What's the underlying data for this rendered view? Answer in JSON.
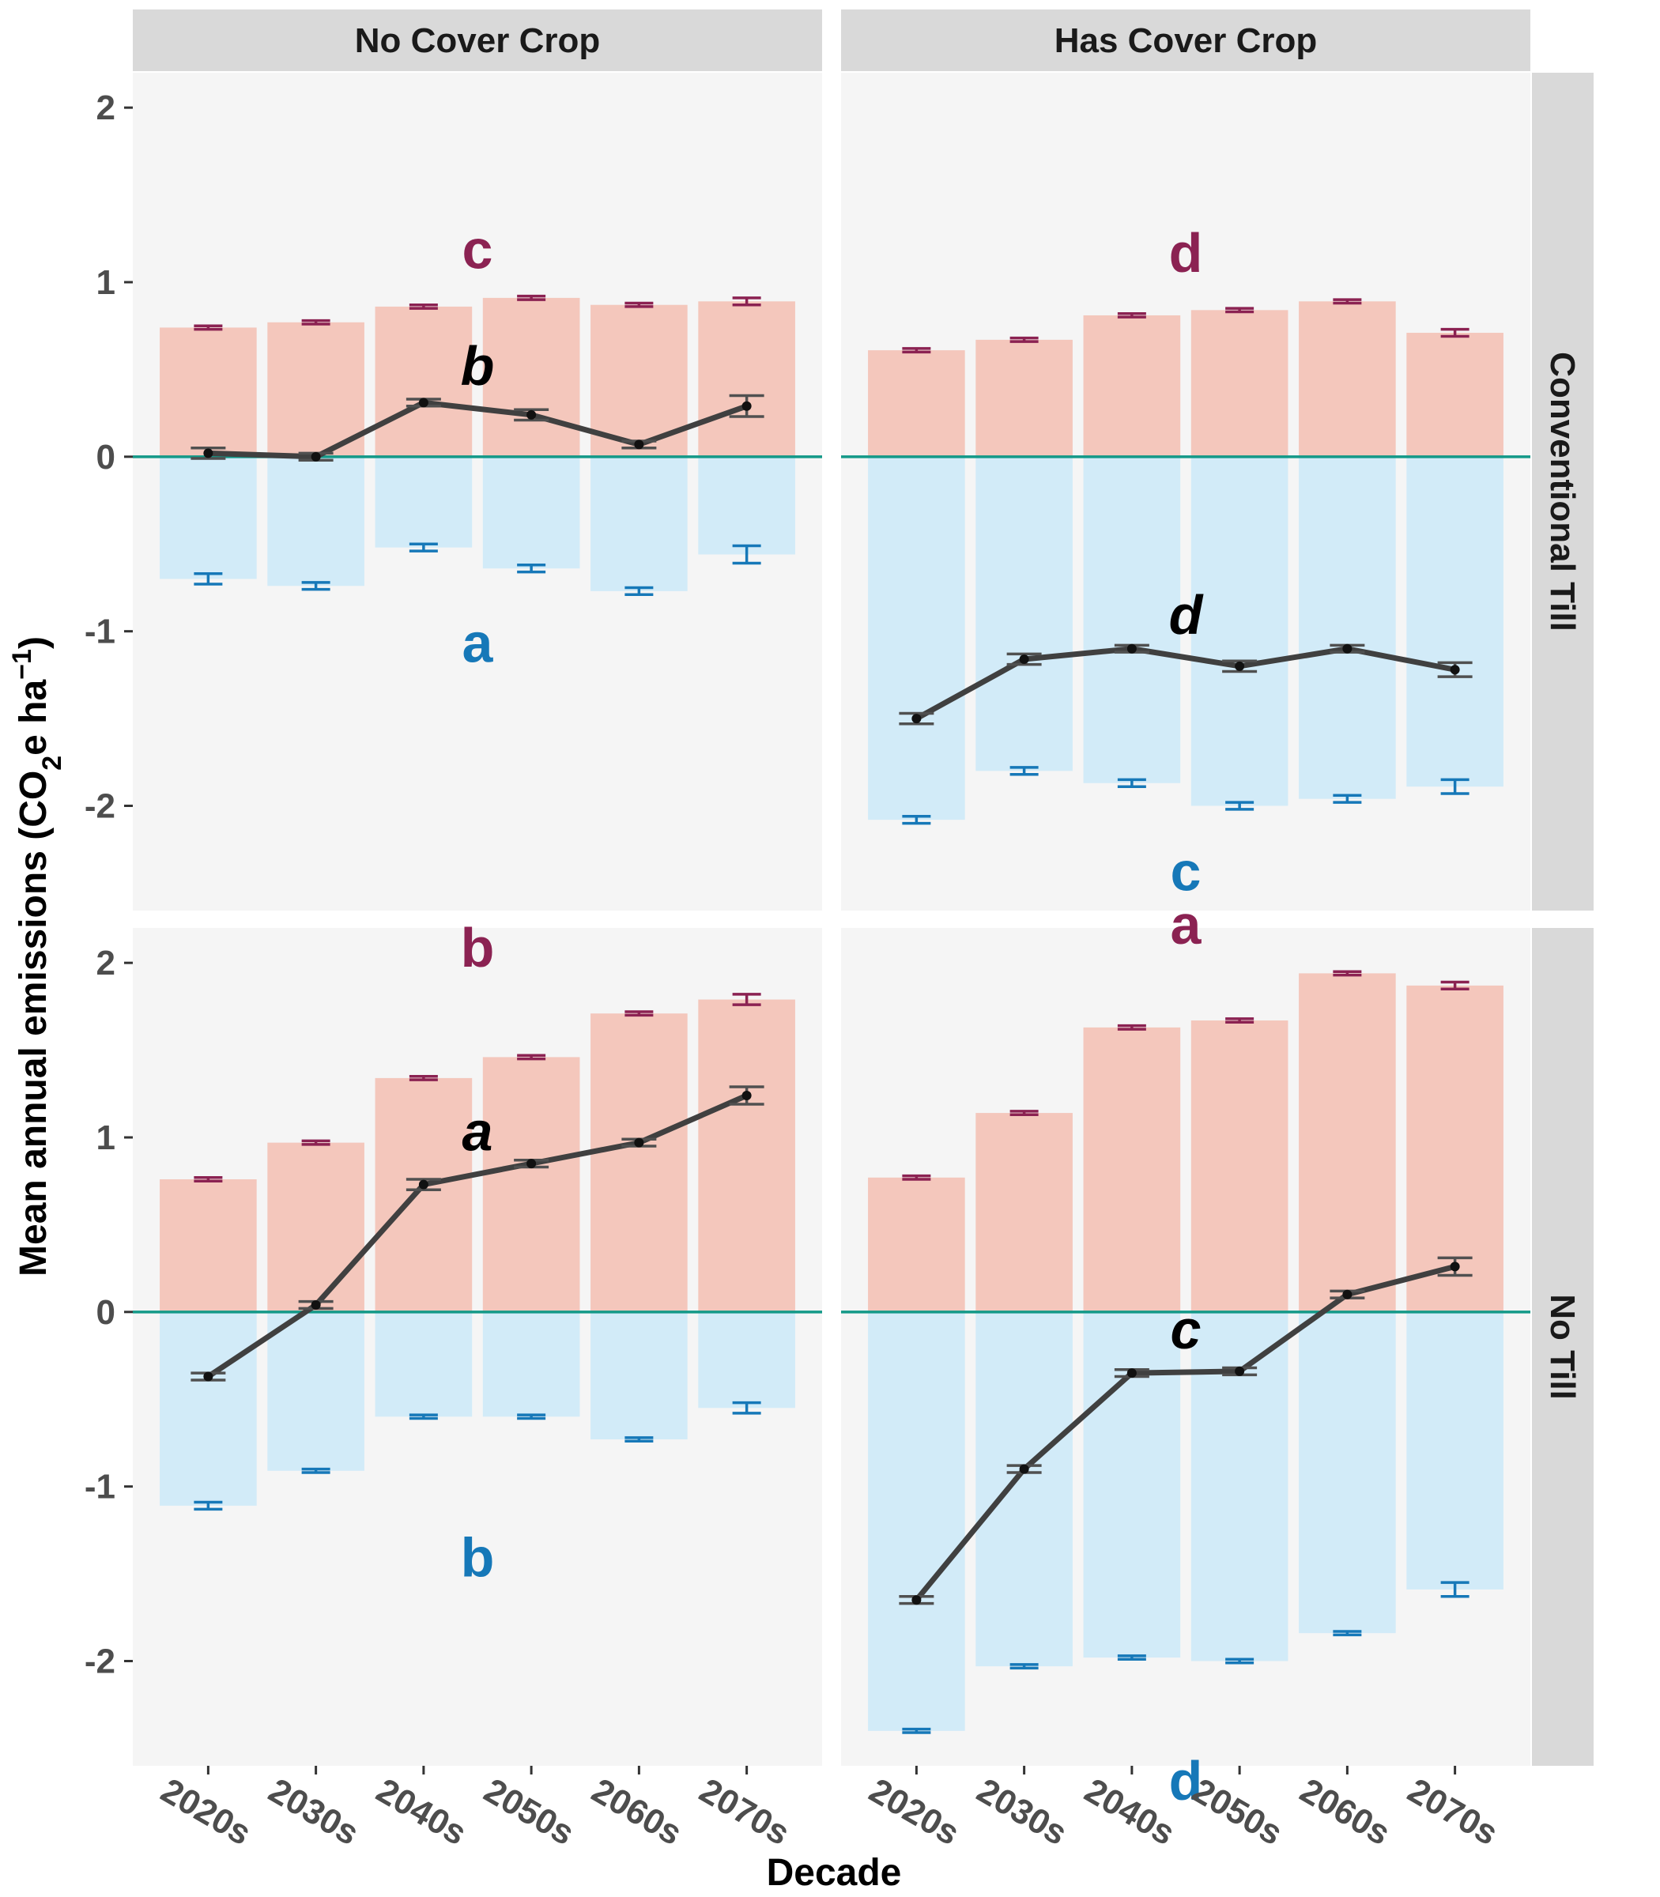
{
  "colors": {
    "positive_fill": "#f4c7bc",
    "negative_fill": "#d2ebf8",
    "positive_err": "#8b2252",
    "negative_err": "#1678b8",
    "net_line": "#404040",
    "net_err": "#505050",
    "zero_line": "#139988",
    "panel_bg": "#f5f5f5",
    "strip_bg": "#d9d9d9",
    "net_letter": "#000000"
  },
  "chart_data": {
    "type": "bar",
    "description_free": true,
    "xlabel": "Decade",
    "ylabel": "Mean annual emissions (CO2e ha-1)",
    "ylabel_parts": {
      "main": "Mean annual emissions (CO",
      "sub": "2",
      "mid": "e ha",
      "sup": "−1",
      "end": ")"
    },
    "ylim": [
      -2.6,
      2.2
    ],
    "yticks": [
      -2,
      -1,
      0,
      1,
      2
    ],
    "ytick_labels": [
      "-2",
      "-1",
      "0",
      "1",
      "2"
    ],
    "categories": [
      "2020s",
      "2030s",
      "2040s",
      "2050s",
      "2060s",
      "2070s"
    ],
    "column_facets": [
      "No Cover Crop",
      "Has Cover Crop"
    ],
    "row_facets": [
      "Conventional Till",
      "No Till"
    ],
    "panels": [
      {
        "col": "No Cover Crop",
        "row": "Conventional Till",
        "positive": [
          0.74,
          0.77,
          0.86,
          0.91,
          0.87,
          0.89
        ],
        "positive_err": [
          0.01,
          0.01,
          0.01,
          0.01,
          0.01,
          0.02
        ],
        "negative": [
          -0.7,
          -0.74,
          -0.52,
          -0.64,
          -0.77,
          -0.56
        ],
        "negative_err": [
          0.03,
          0.02,
          0.02,
          0.02,
          0.02,
          0.05
        ],
        "net": [
          0.02,
          0.0,
          0.31,
          0.24,
          0.07,
          0.29
        ],
        "net_err": [
          0.03,
          0.02,
          0.02,
          0.03,
          0.02,
          0.06
        ],
        "letters": {
          "positive": "c",
          "net": "b",
          "negative": "a"
        }
      },
      {
        "col": "Has Cover Crop",
        "row": "Conventional Till",
        "positive": [
          0.61,
          0.67,
          0.81,
          0.84,
          0.89,
          0.71
        ],
        "positive_err": [
          0.01,
          0.01,
          0.01,
          0.01,
          0.01,
          0.02
        ],
        "negative": [
          -2.08,
          -1.8,
          -1.87,
          -2.0,
          -1.96,
          -1.89
        ],
        "negative_err": [
          0.02,
          0.02,
          0.02,
          0.02,
          0.02,
          0.04
        ],
        "net": [
          -1.5,
          -1.16,
          -1.1,
          -1.2,
          -1.1,
          -1.22
        ],
        "net_err": [
          0.03,
          0.03,
          0.02,
          0.03,
          0.02,
          0.04
        ],
        "letters": {
          "positive": "d",
          "net": "d",
          "negative": "c"
        }
      },
      {
        "col": "No Cover Crop",
        "row": "No Till",
        "positive": [
          0.76,
          0.97,
          1.34,
          1.46,
          1.71,
          1.79
        ],
        "positive_err": [
          0.01,
          0.01,
          0.01,
          0.01,
          0.01,
          0.03
        ],
        "negative": [
          -1.11,
          -0.91,
          -0.6,
          -0.6,
          -0.73,
          -0.55
        ],
        "negative_err": [
          0.02,
          0.01,
          0.01,
          0.01,
          0.01,
          0.03
        ],
        "net": [
          -0.37,
          0.04,
          0.73,
          0.85,
          0.97,
          1.24
        ],
        "net_err": [
          0.02,
          0.02,
          0.03,
          0.02,
          0.02,
          0.05
        ],
        "letters": {
          "positive": "b",
          "net": "a",
          "negative": "b"
        }
      },
      {
        "col": "Has Cover Crop",
        "row": "No Till",
        "positive": [
          0.77,
          1.14,
          1.63,
          1.67,
          1.94,
          1.87
        ],
        "positive_err": [
          0.01,
          0.01,
          0.01,
          0.01,
          0.01,
          0.02
        ],
        "negative": [
          -2.4,
          -2.03,
          -1.98,
          -2.0,
          -1.84,
          -1.59
        ],
        "negative_err": [
          0.01,
          0.01,
          0.01,
          0.01,
          0.01,
          0.04
        ],
        "net": [
          -1.65,
          -0.9,
          -0.35,
          -0.34,
          0.1,
          0.26
        ],
        "net_err": [
          0.02,
          0.02,
          0.02,
          0.02,
          0.02,
          0.05
        ],
        "letters": {
          "positive": "a",
          "net": "c",
          "negative": "d"
        }
      }
    ]
  }
}
